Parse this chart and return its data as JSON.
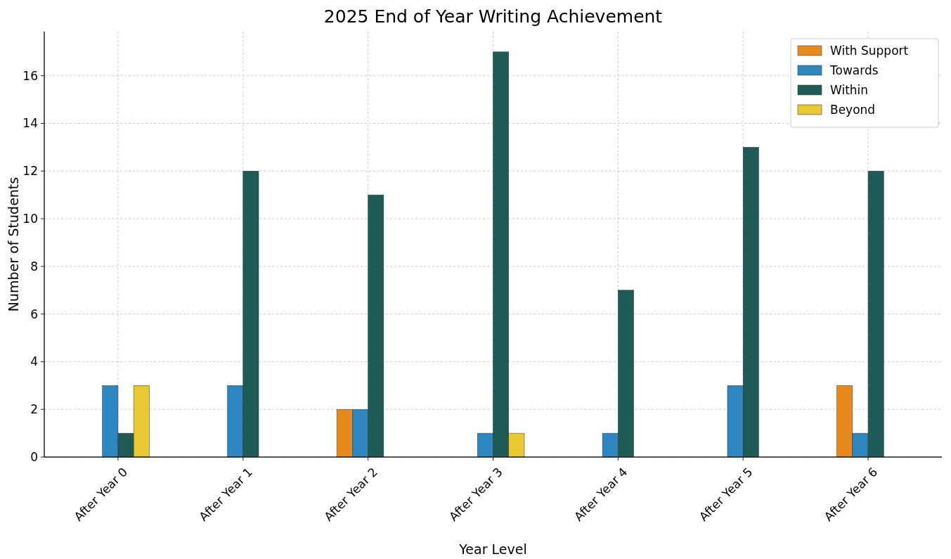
{
  "chart_data": {
    "type": "bar",
    "title": "2025 End of Year Writing Achievement",
    "xlabel": "Year Level",
    "ylabel": "Number of Students",
    "categories": [
      "After Year 0",
      "After Year 1",
      "After Year 2",
      "After Year 3",
      "After Year 4",
      "After Year 5",
      "After Year 6"
    ],
    "series": [
      {
        "name": "With Support",
        "color": "#e8891c",
        "values": [
          0,
          0,
          2,
          0,
          0,
          0,
          3
        ]
      },
      {
        "name": "Towards",
        "color": "#2e86c1",
        "values": [
          3,
          3,
          2,
          1,
          1,
          3,
          1
        ]
      },
      {
        "name": "Within",
        "color": "#1e5b56",
        "values": [
          1,
          12,
          11,
          17,
          7,
          13,
          12
        ]
      },
      {
        "name": "Beyond",
        "color": "#eac832",
        "values": [
          3,
          0,
          0,
          1,
          0,
          0,
          0
        ]
      }
    ],
    "ylim": [
      0,
      17.85
    ],
    "yticks": [
      0,
      2,
      4,
      6,
      8,
      10,
      12,
      14,
      16
    ],
    "grid": true,
    "legend": "top right"
  }
}
